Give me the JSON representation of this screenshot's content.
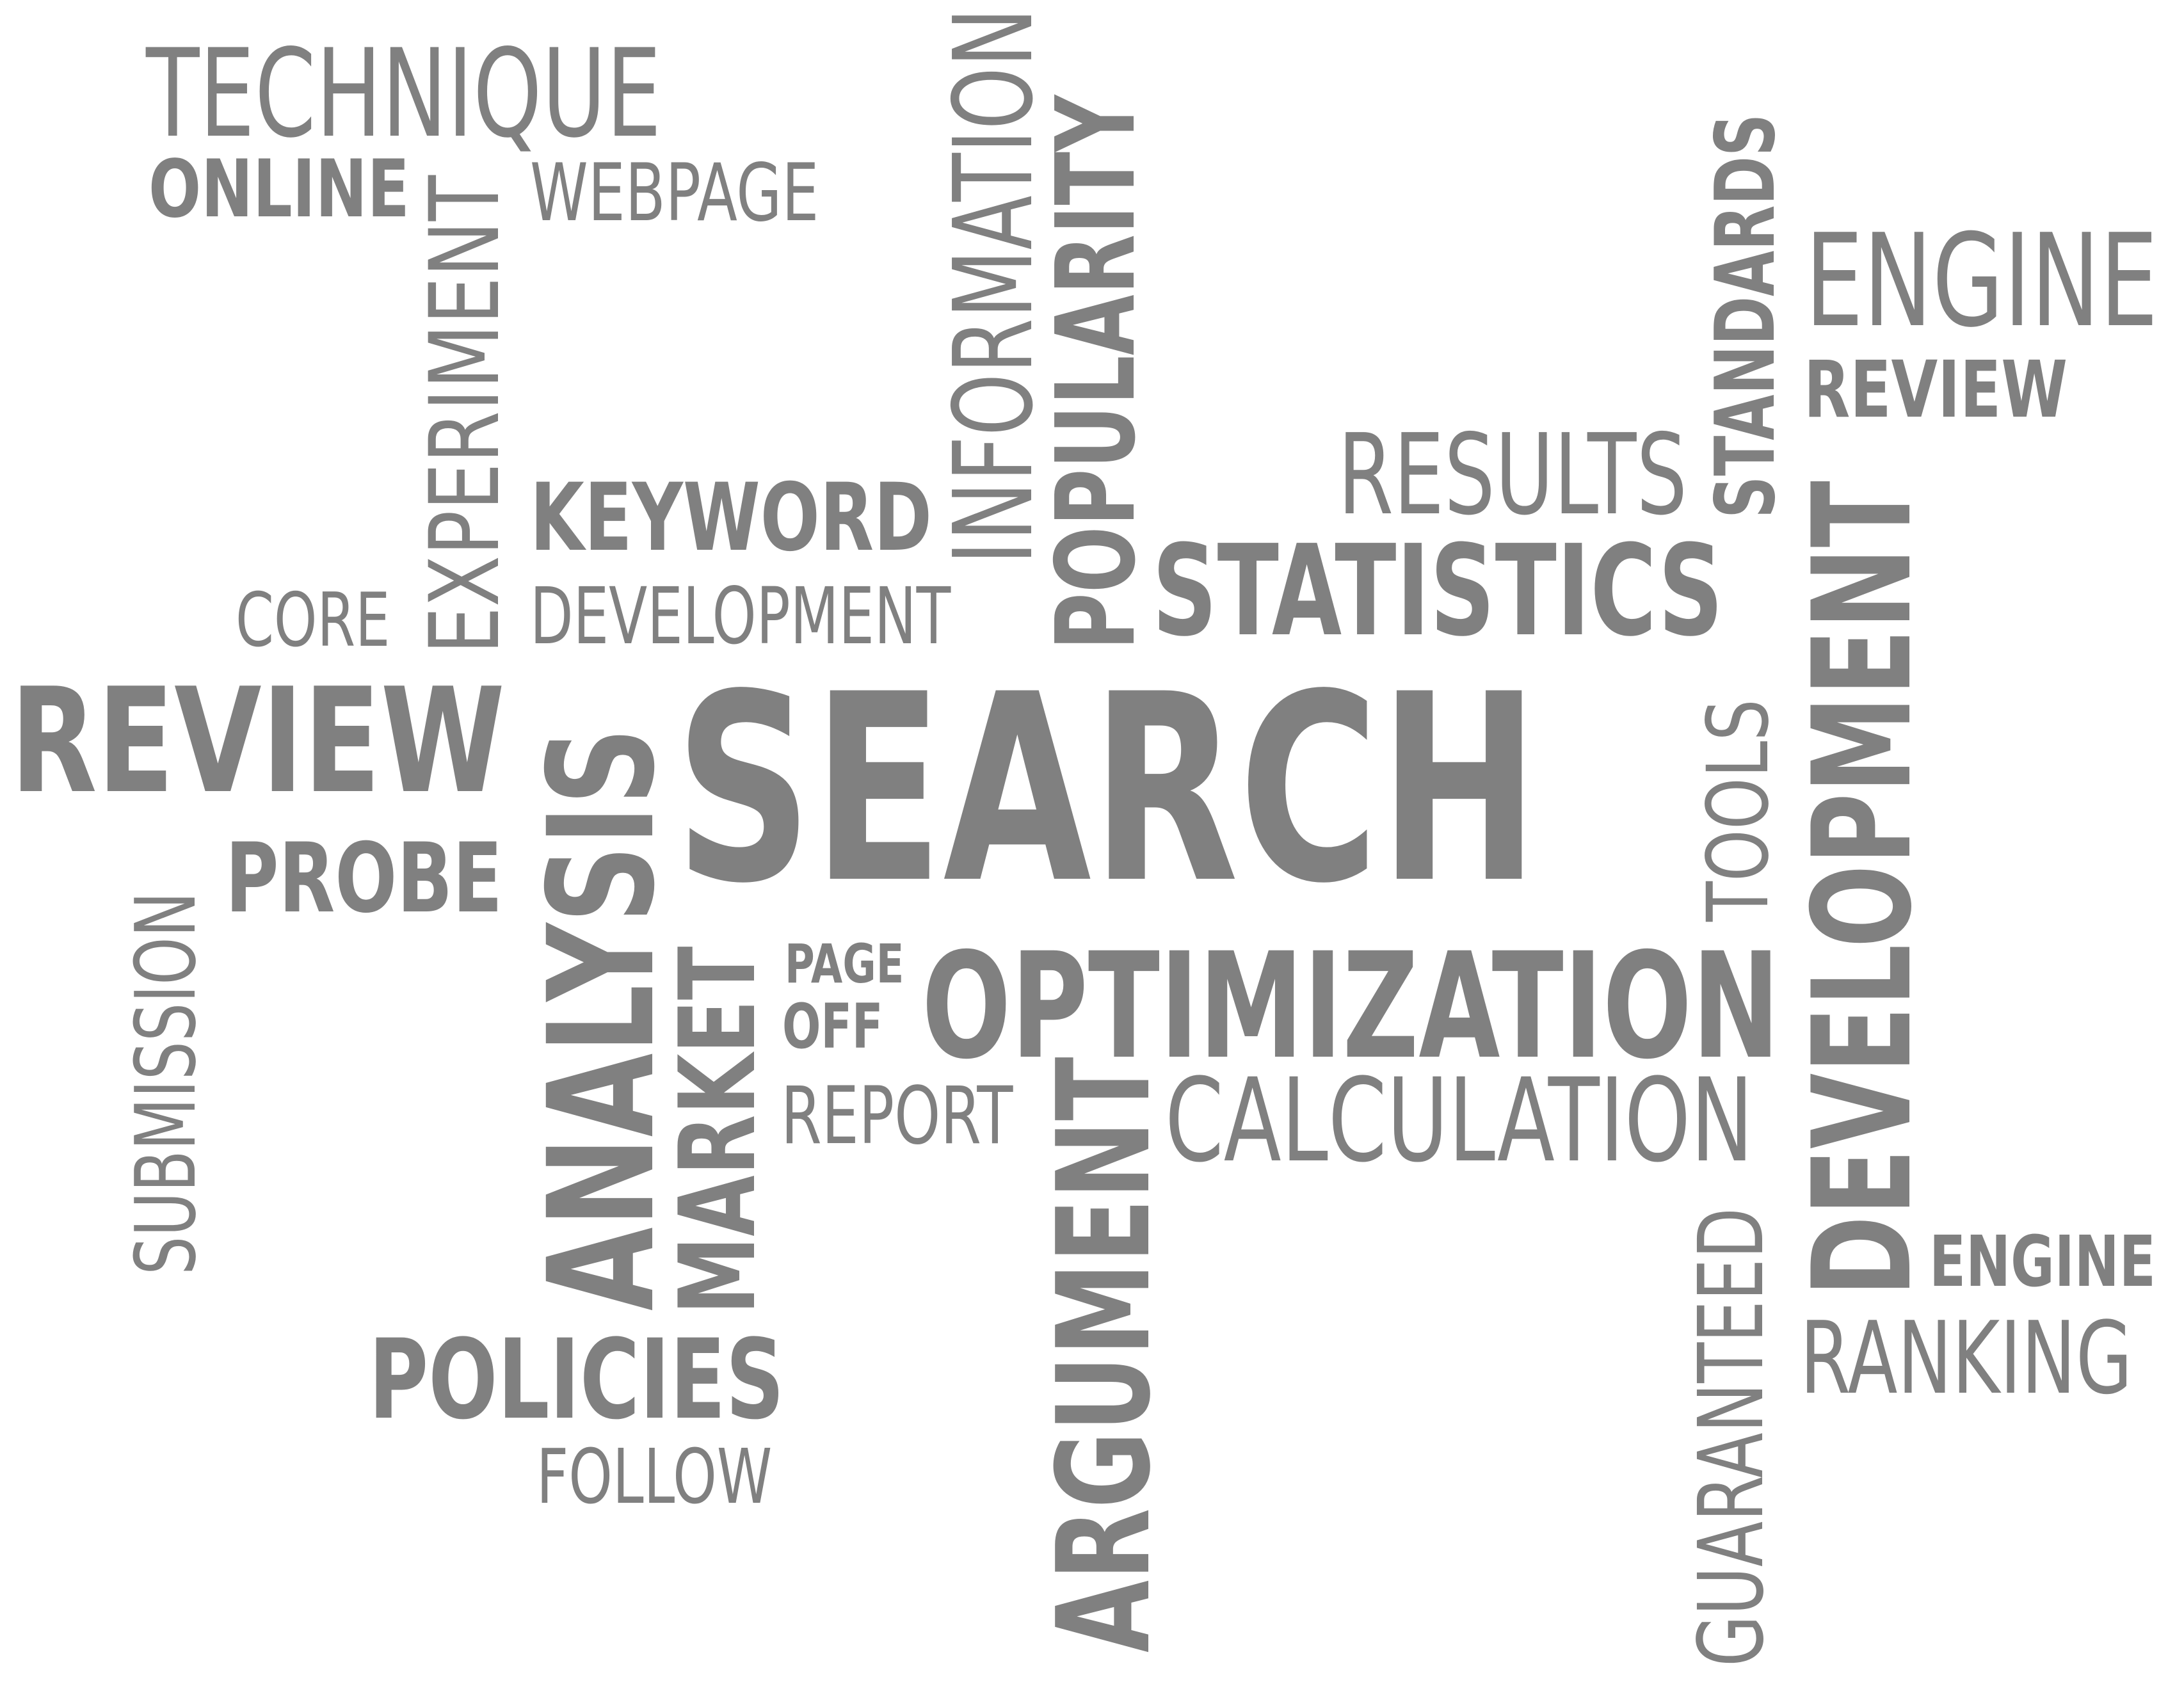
{
  "palette": {
    "text": "#808080",
    "background": "#ffffff"
  },
  "words": {
    "technique": "TECHNIQUE",
    "online": "ONLINE",
    "webpage": "WEBPAGE",
    "experiment": "EXPERIMENT",
    "information": "INFORMATION",
    "popularity": "POPULARITY",
    "standards": "STANDARDS",
    "engine_top": "ENGINE",
    "review_small": "REVIEW",
    "results": "RESULTS",
    "keyword": "KEYWORD",
    "statistics": "STATISTICS",
    "core": "CORE",
    "development_small": "DEVELOPMENT",
    "review_large": "REVIEW",
    "search": "SEARCH",
    "analysis": "ANALYSIS",
    "tools": "TOOLS",
    "development_vertical": "DEVELOPMENT",
    "submission": "SUBMISSION",
    "probe": "PROBE",
    "page": "PAGE",
    "off": "OFF",
    "optimization": "OPTIMIZATION",
    "market": "MARKET",
    "report": "REPORT",
    "argument": "ARGUMENT",
    "calculation": "CALCULATION",
    "guaranteed": "GUARANTEED",
    "engine_bottom": "ENGINE",
    "ranking": "RANKING",
    "policies": "POLICIES",
    "follow": "FOLLOW"
  }
}
